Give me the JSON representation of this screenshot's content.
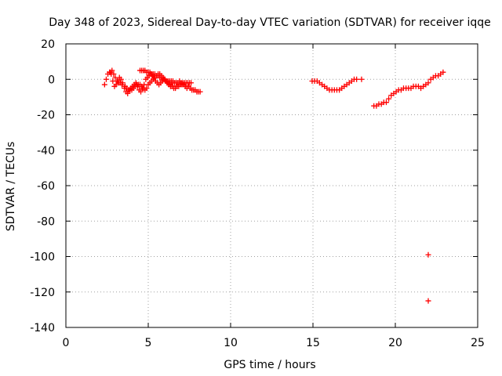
{
  "chart_data": {
    "type": "scatter",
    "title": "Day 348 of 2023, Sidereal Day-to-day VTEC variation (SDTVAR) for receiver iqqe",
    "xlabel": "GPS time / hours",
    "ylabel": "SDTVAR / TECUs",
    "xlim": [
      0,
      25
    ],
    "ylim": [
      -140,
      20
    ],
    "xticks": [
      "0",
      "5",
      "10",
      "15",
      "20",
      "25"
    ],
    "yticks": [
      "20",
      "0",
      "-20",
      "-40",
      "-60",
      "-80",
      "-100",
      "-120",
      "-140"
    ],
    "grid": true,
    "marker": "+",
    "color": "#ff0000",
    "series": [
      {
        "name": "SDTVAR",
        "x": [
          2.35,
          2.45,
          2.55,
          2.65,
          2.75,
          2.85,
          2.95,
          3.05,
          3.15,
          3.25,
          3.35,
          3.45,
          3.55,
          3.65,
          3.75,
          3.85,
          3.95,
          4.05,
          4.15,
          4.25,
          4.35,
          4.45,
          4.55,
          4.65,
          4.75,
          4.85,
          4.95,
          5.05,
          5.15,
          5.25,
          5.35,
          5.45,
          5.55,
          5.65,
          5.75,
          5.85,
          5.95,
          6.05,
          6.15,
          6.25,
          6.35,
          6.45,
          6.55,
          6.65,
          6.75,
          6.85,
          6.95,
          7.05,
          7.15,
          7.25,
          7.35,
          7.45,
          7.55,
          7.65,
          7.75,
          7.85,
          7.95,
          8.05,
          8.15,
          3.6,
          3.7,
          3.8,
          3.9,
          4.0,
          4.1,
          4.2,
          4.3,
          4.4,
          4.5,
          4.6,
          4.7,
          4.8,
          4.9,
          5.0,
          5.1,
          5.2,
          5.3,
          5.4,
          5.5,
          5.6,
          5.7,
          5.8,
          5.9,
          6.0,
          6.1,
          6.2,
          6.3,
          6.4,
          6.5,
          6.6,
          6.7,
          6.8,
          6.9,
          7.0,
          7.1,
          7.2,
          7.3,
          7.4,
          7.5,
          7.6,
          4.5,
          4.6,
          4.7,
          4.8,
          4.9,
          5.0,
          5.1,
          5.2,
          5.3,
          5.4,
          5.5,
          5.6,
          5.7,
          5.8,
          5.9,
          6.0,
          6.1,
          6.2,
          6.3,
          6.4,
          6.5,
          2.7,
          2.8,
          2.9,
          3.0,
          3.1,
          3.2,
          3.3,
          3.4,
          14.95,
          15.1,
          15.25,
          15.4,
          15.55,
          15.7,
          15.85,
          16.0,
          16.15,
          16.3,
          16.45,
          16.6,
          16.75,
          16.9,
          17.05,
          17.2,
          17.35,
          17.5,
          17.65,
          17.95,
          18.7,
          18.85,
          19.0,
          19.15,
          19.3,
          19.45,
          19.6,
          19.75,
          19.9,
          20.05,
          20.2,
          20.35,
          20.5,
          20.65,
          20.8,
          20.95,
          21.1,
          21.25,
          21.4,
          21.55,
          21.7,
          21.85,
          22.0,
          22.15,
          22.3,
          22.45,
          22.6,
          22.75,
          22.9,
          22.0,
          22.0
        ],
        "y": [
          -3,
          0,
          3,
          4,
          3,
          -1,
          -4,
          -3,
          -1,
          1,
          0,
          -2,
          -5,
          -7,
          -8,
          -6,
          -5,
          -4,
          -3,
          -2,
          -4,
          -6,
          -7,
          -5,
          -3,
          0,
          1,
          2,
          3,
          2,
          1,
          -1,
          -2,
          -3,
          -2,
          -1,
          0,
          -1,
          -2,
          -3,
          -4,
          -4,
          -5,
          -5,
          -4,
          -4,
          -3,
          -3,
          -3,
          -4,
          -5,
          -4,
          -5,
          -6,
          -6,
          -6,
          -7,
          -7,
          -7,
          -4,
          -5,
          -6,
          -6,
          -6,
          -5,
          -4,
          -3,
          -3,
          -3,
          -4,
          -5,
          -6,
          -5,
          -3,
          -2,
          -1,
          0,
          1,
          2,
          3,
          3,
          2,
          1,
          0,
          -1,
          -2,
          -2,
          -2,
          -2,
          -2,
          -2,
          -2,
          -1,
          -2,
          -2,
          -2,
          -2,
          -2,
          -2,
          -2,
          5,
          5,
          5,
          5,
          4,
          4,
          4,
          3,
          3,
          3,
          2,
          2,
          1,
          1,
          0,
          0,
          -1,
          -1,
          -1,
          -1,
          -1,
          4,
          5,
          3,
          1,
          -1,
          -2,
          -2,
          -3,
          -1,
          -1,
          -1,
          -2,
          -3,
          -4,
          -5,
          -6,
          -6,
          -6,
          -6,
          -6,
          -5,
          -4,
          -3,
          -2,
          -1,
          0,
          0,
          0,
          -15,
          -15,
          -14,
          -14,
          -13,
          -13,
          -11,
          -9,
          -8,
          -7,
          -6,
          -6,
          -5,
          -5,
          -5,
          -5,
          -4,
          -4,
          -4,
          -5,
          -4,
          -3,
          -2,
          0,
          1,
          2,
          2,
          3,
          4,
          -99,
          -125
        ]
      }
    ]
  }
}
